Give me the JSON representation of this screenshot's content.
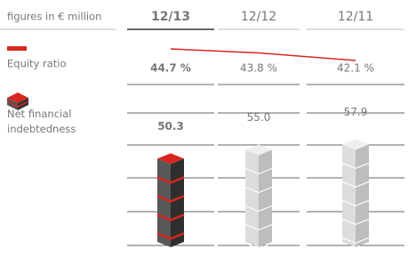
{
  "chart_data": {
    "type": "infographic",
    "unit_label": "figures in € million",
    "categories": [
      "12/13",
      "12/12",
      "12/11"
    ],
    "column_colors": [
      "#d7261e",
      "#d2d2d2",
      "#d2d2d2"
    ],
    "series": [
      {
        "name": "Equity ratio",
        "color": "#d7261e",
        "values": [
          44.7,
          43.8,
          42.1
        ],
        "value_labels": [
          "44.7 %",
          "43.8 %",
          "42.1 %"
        ]
      },
      {
        "name": "Net financial indebtedness",
        "color": "#d7261e",
        "values": [
          50.3,
          55.0,
          57.9
        ],
        "value_labels": [
          "50.3",
          "55.0",
          "57.9"
        ]
      }
    ]
  }
}
